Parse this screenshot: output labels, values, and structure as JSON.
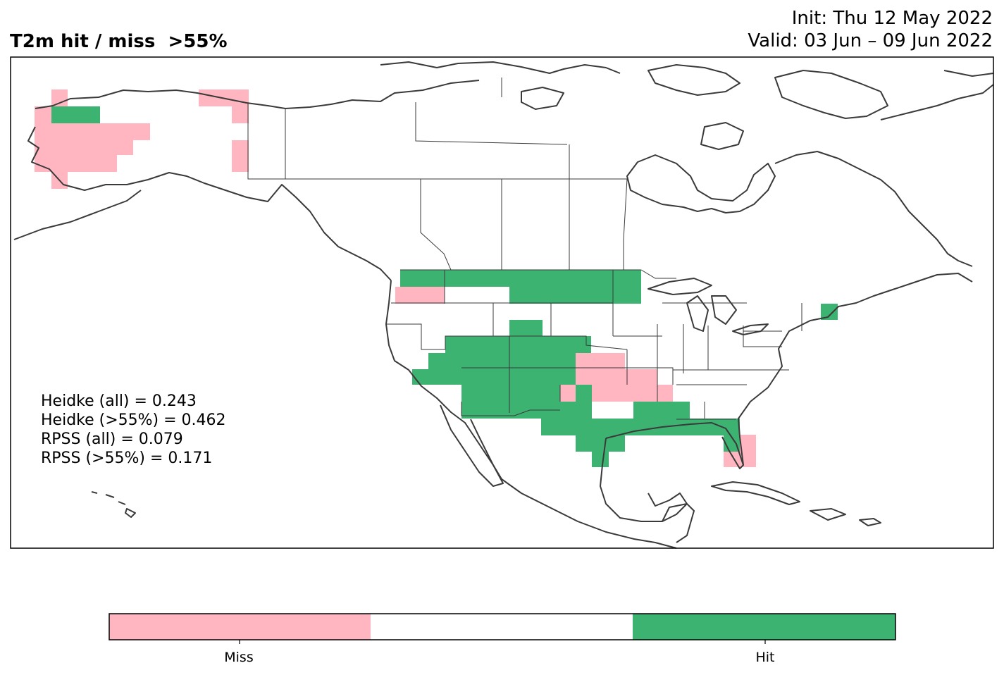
{
  "title": "T2m hit / miss  >55%",
  "init_line": "Init: Thu 12 May 2022",
  "valid_line": "Valid: 03 Jun – 09 Jun 2022",
  "stats": [
    "Heidke (all) = 0.243",
    "Heidke (>55%) = 0.462",
    "RPSS (all) = 0.079",
    "RPSS (>55%) = 0.171"
  ],
  "legend": {
    "labels": [
      "Miss",
      "Hit"
    ],
    "colors": {
      "miss": "#ffb6c1",
      "neutral": "#ffffff",
      "hit": "#3cb371"
    }
  },
  "colors": {
    "miss": "#ffb6c1",
    "hit": "#3cb371",
    "coastline": "#3a3a3a",
    "frame": "#000000"
  }
}
